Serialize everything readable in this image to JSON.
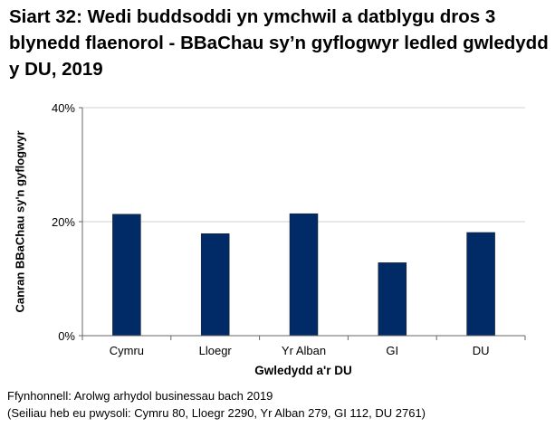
{
  "chart_data": {
    "type": "bar",
    "title": "Siart 32: Wedi buddsoddi yn ymchwil a datblygu dros 3 blynedd flaenorol - BBaChau sy’n gyflogwyr ledled gwledydd y DU, 2019",
    "categories": [
      "Cymru",
      "Lloegr",
      "Yr Alban",
      "GI",
      "DU"
    ],
    "values": [
      21.3,
      17.9,
      21.4,
      12.8,
      18.1
    ],
    "xlabel": "Gwledydd a'r DU",
    "ylabel": "Canran BBaChau sy'n gyflogwyr",
    "ylim": [
      0,
      40
    ],
    "yticks": [
      0,
      20,
      40
    ],
    "ytick_labels": [
      "0%",
      "20%",
      "40%"
    ],
    "grid": true,
    "bar_color": "#002B66"
  },
  "notes": {
    "source": "Ffynhonnell: Arolwg arhydol businessau bach 2019",
    "bases": "(Seiliau heb eu pwysoli: Cymru 80, Lloegr 2290, Yr Alban 279, GI 112, DU 2761)"
  }
}
